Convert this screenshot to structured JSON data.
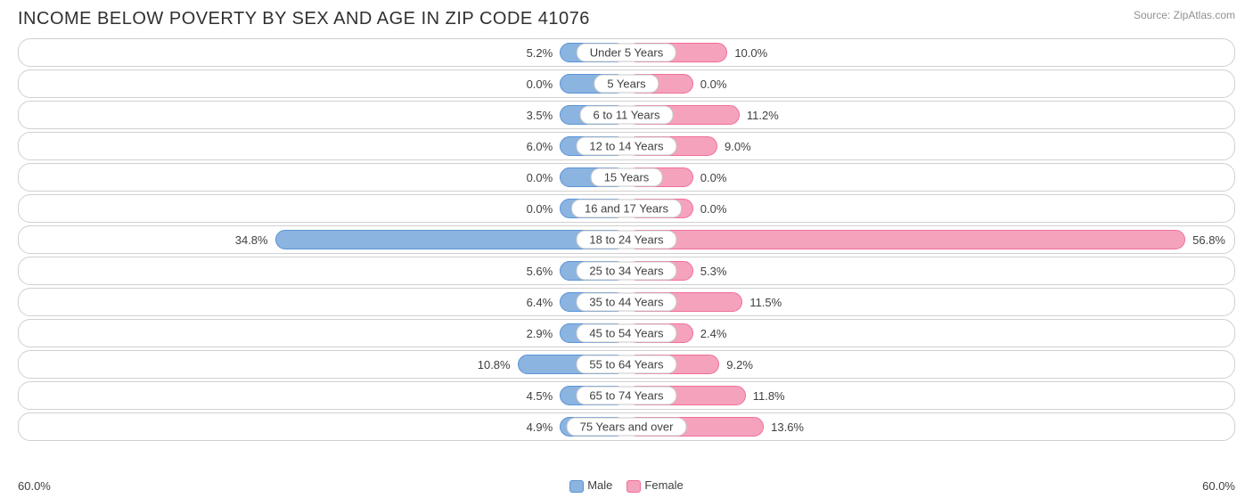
{
  "title": "INCOME BELOW POVERTY BY SEX AND AGE IN ZIP CODE 41076",
  "source": "Source: ZipAtlas.com",
  "chart": {
    "type": "diverging-bar",
    "axis_max": 60.0,
    "axis_label_left": "60.0%",
    "axis_label_right": "60.0%",
    "min_bar_pct_visual": 11.0,
    "colors": {
      "male_fill": "#8bb4e0",
      "male_border": "#5a93d6",
      "female_fill": "#f5a3bd",
      "female_border": "#ef6f97",
      "row_border": "#d0d0d0",
      "text": "#404040",
      "background": "#ffffff"
    },
    "legend": [
      {
        "label": "Male",
        "fill": "#8bb4e0",
        "border": "#5a93d6"
      },
      {
        "label": "Female",
        "fill": "#f5a3bd",
        "border": "#ef6f97"
      }
    ],
    "rows": [
      {
        "category": "Under 5 Years",
        "male": 5.2,
        "female": 10.0,
        "male_label": "5.2%",
        "female_label": "10.0%"
      },
      {
        "category": "5 Years",
        "male": 0.0,
        "female": 0.0,
        "male_label": "0.0%",
        "female_label": "0.0%"
      },
      {
        "category": "6 to 11 Years",
        "male": 3.5,
        "female": 11.2,
        "male_label": "3.5%",
        "female_label": "11.2%"
      },
      {
        "category": "12 to 14 Years",
        "male": 6.0,
        "female": 9.0,
        "male_label": "6.0%",
        "female_label": "9.0%"
      },
      {
        "category": "15 Years",
        "male": 0.0,
        "female": 0.0,
        "male_label": "0.0%",
        "female_label": "0.0%"
      },
      {
        "category": "16 and 17 Years",
        "male": 0.0,
        "female": 0.0,
        "male_label": "0.0%",
        "female_label": "0.0%"
      },
      {
        "category": "18 to 24 Years",
        "male": 34.8,
        "female": 56.8,
        "male_label": "34.8%",
        "female_label": "56.8%"
      },
      {
        "category": "25 to 34 Years",
        "male": 5.6,
        "female": 5.3,
        "male_label": "5.6%",
        "female_label": "5.3%"
      },
      {
        "category": "35 to 44 Years",
        "male": 6.4,
        "female": 11.5,
        "male_label": "6.4%",
        "female_label": "11.5%"
      },
      {
        "category": "45 to 54 Years",
        "male": 2.9,
        "female": 2.4,
        "male_label": "2.9%",
        "female_label": "2.4%"
      },
      {
        "category": "55 to 64 Years",
        "male": 10.8,
        "female": 9.2,
        "male_label": "10.8%",
        "female_label": "9.2%"
      },
      {
        "category": "65 to 74 Years",
        "male": 4.5,
        "female": 11.8,
        "male_label": "4.5%",
        "female_label": "11.8%"
      },
      {
        "category": "75 Years and over",
        "male": 4.9,
        "female": 13.6,
        "male_label": "4.9%",
        "female_label": "13.6%"
      }
    ]
  }
}
